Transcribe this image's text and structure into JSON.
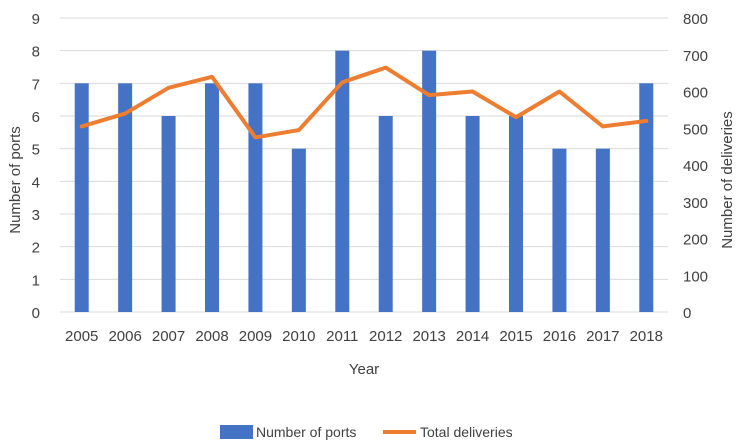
{
  "chart_data": {
    "type": "bar",
    "categories": [
      "2005",
      "2006",
      "2007",
      "2008",
      "2009",
      "2010",
      "2011",
      "2012",
      "2013",
      "2014",
      "2015",
      "2016",
      "2017",
      "2018"
    ],
    "xlabel": "Year",
    "ylabel": "Number of ports",
    "y2label": "Number of deliveries",
    "ylim": [
      0,
      9
    ],
    "y2lim": [
      0,
      800
    ],
    "yticks": [
      "0",
      "1",
      "2",
      "3",
      "4",
      "5",
      "6",
      "7",
      "8",
      "9"
    ],
    "y2ticks": [
      "0",
      "100",
      "200",
      "300",
      "400",
      "500",
      "600",
      "700",
      "800"
    ],
    "grid": true,
    "legend_position": "bottom",
    "series": [
      {
        "name": "Number of ports",
        "type": "bar",
        "axis": "left",
        "color": "#4472C4",
        "values": [
          7,
          7,
          6,
          7,
          7,
          5,
          8,
          6,
          8,
          6,
          6,
          5,
          5,
          7
        ]
      },
      {
        "name": "Total deliveries",
        "type": "line",
        "axis": "right",
        "color": "#ED7D31",
        "values": [
          505,
          540,
          610,
          640,
          475,
          495,
          625,
          665,
          590,
          600,
          530,
          600,
          505,
          520
        ]
      }
    ]
  }
}
